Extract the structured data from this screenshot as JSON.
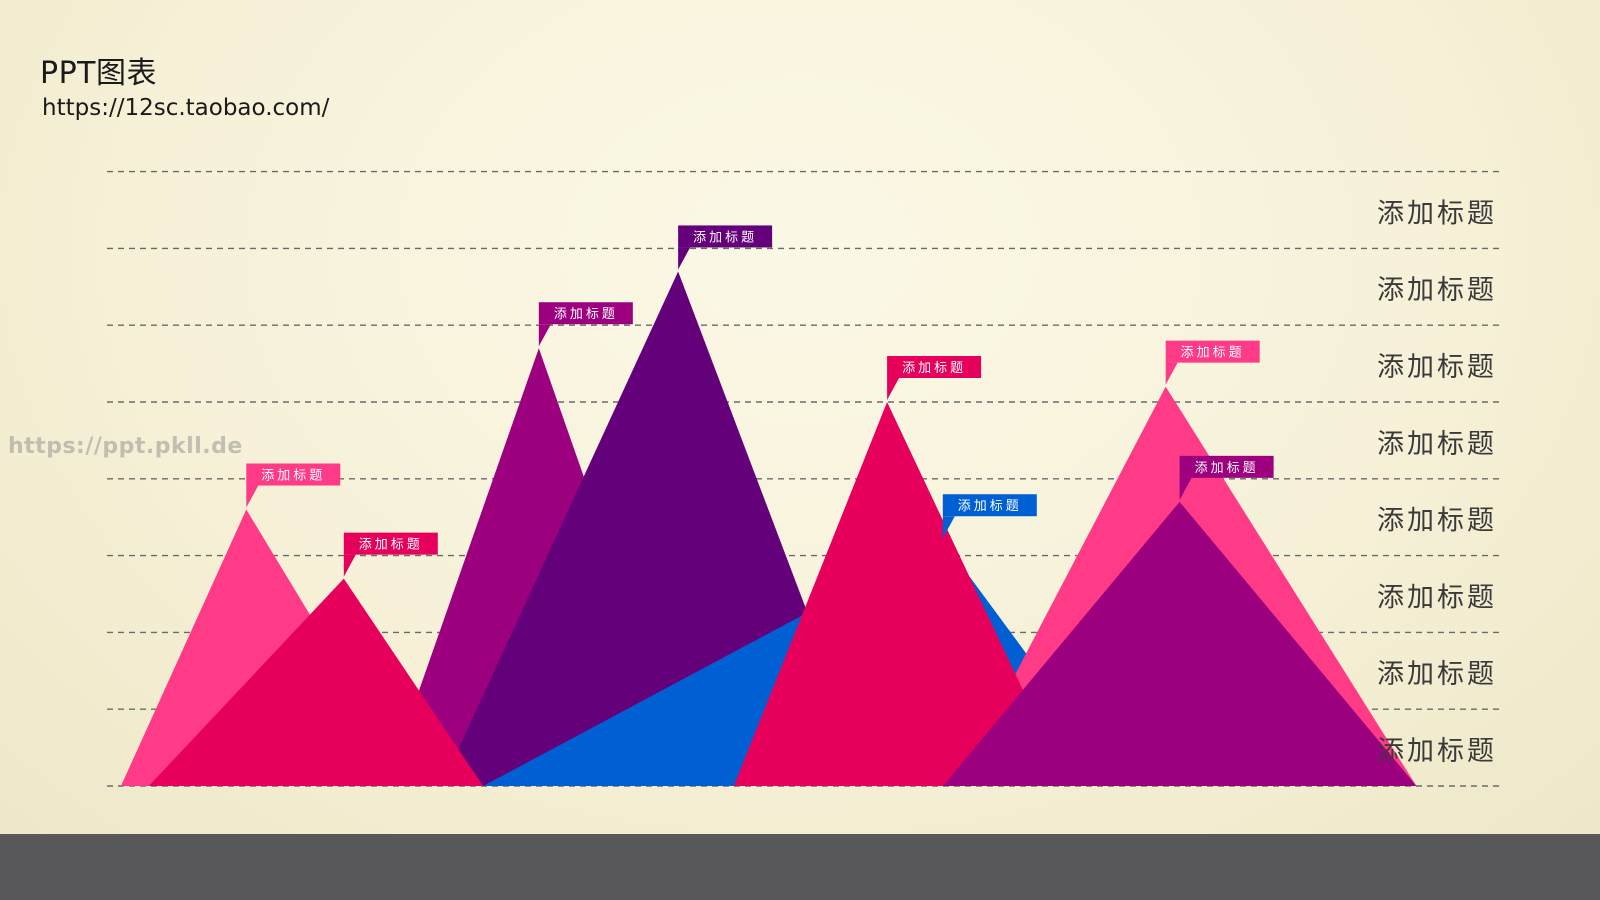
{
  "header": {
    "title": "PPT图表",
    "subtitle": "https://12sc.taobao.com/"
  },
  "watermark": "https://ppt.pkll.de",
  "chart_data": {
    "type": "area",
    "title": "",
    "xlabel": "",
    "ylabel": "",
    "grid": true,
    "ylim": [
      0,
      8
    ],
    "y_levels": [
      "添加标题",
      "添加标题",
      "添加标题",
      "添加标题",
      "添加标题",
      "添加标题",
      "添加标题",
      "添加标题"
    ],
    "series": [
      {
        "label": "添加标题",
        "color": "#ff3b87",
        "peak_x": 0.1,
        "start_x": 0.01,
        "end_x": 0.22,
        "value": 3.6
      },
      {
        "label": "添加标题",
        "color": "#9c007e",
        "peak_x": 0.31,
        "start_x": 0.2,
        "end_x": 0.42,
        "value": 5.7
      },
      {
        "label": "添加标题",
        "color": "#64007a",
        "peak_x": 0.41,
        "start_x": 0.24,
        "end_x": 0.55,
        "value": 6.7
      },
      {
        "label": "添加标题",
        "color": "#e6005c",
        "peak_x": 0.17,
        "start_x": 0.03,
        "end_x": 0.27,
        "value": 2.7
      },
      {
        "label": "添加标题",
        "color": "#005fd2",
        "peak_x": 0.6,
        "start_x": 0.27,
        "end_x": 0.73,
        "value": 3.2
      },
      {
        "label": "添加标题",
        "color": "#ff3b87",
        "peak_x": 0.76,
        "start_x": 0.61,
        "end_x": 0.94,
        "value": 5.2
      },
      {
        "label": "添加标题",
        "color": "#e6005c",
        "peak_x": 0.56,
        "start_x": 0.45,
        "end_x": 0.69,
        "value": 5.0
      },
      {
        "label": "添加标题",
        "color": "#9c007e",
        "peak_x": 0.77,
        "start_x": 0.6,
        "end_x": 0.94,
        "value": 3.7
      }
    ]
  }
}
